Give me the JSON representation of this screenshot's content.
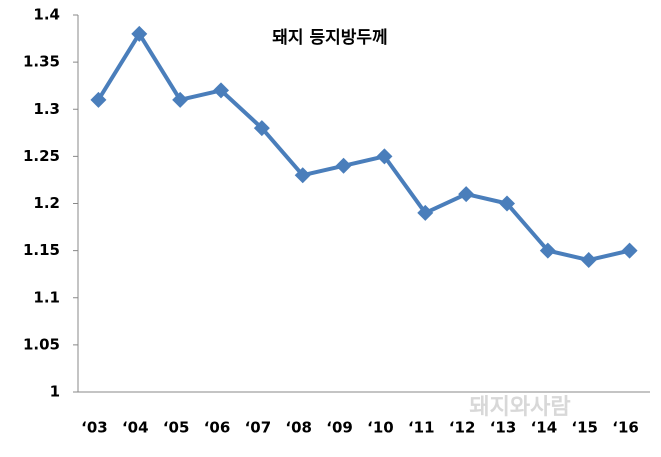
{
  "chart_data": {
    "type": "line",
    "title": "돼지 등지방두께",
    "categories": [
      "‘03",
      "‘04",
      "‘05",
      "‘06",
      "‘07",
      "‘08",
      "‘09",
      "‘10",
      "‘11",
      "‘12",
      "‘13",
      "‘14",
      "‘15",
      "‘16"
    ],
    "series": [
      {
        "name": "돼지 등지방두께",
        "color": "#4a7ebb",
        "values": [
          1.31,
          1.38,
          1.31,
          1.32,
          1.28,
          1.23,
          1.24,
          1.25,
          1.19,
          1.21,
          1.2,
          1.15,
          1.14,
          1.15
        ]
      }
    ],
    "ylim": [
      1,
      1.4
    ],
    "yticks": [
      1,
      1.05,
      1.1,
      1.15,
      1.2,
      1.25,
      1.3,
      1.35,
      1.4
    ],
    "grid": false,
    "watermark": "돼지와사람"
  }
}
